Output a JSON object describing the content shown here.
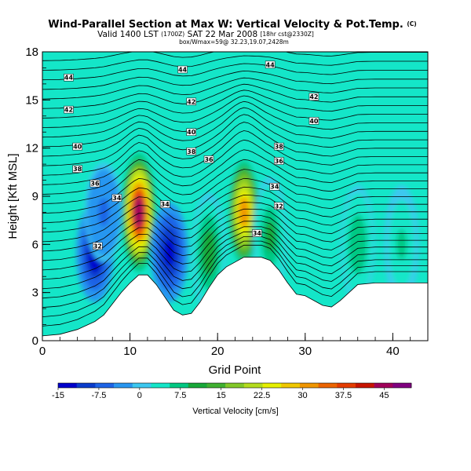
{
  "chart_data": {
    "type": "heatmap",
    "title": "Wind-Parallel Section at Max W: Vertical Velocity & Pot.Temp.",
    "title_mark": "(C)",
    "subtitle_main": "Valid 1400 LST",
    "subtitle_utc": "(1700Z)",
    "subtitle_date": "SAT 22 Mar 2008",
    "subtitle_run": "[18hr cst@2330Z]",
    "subtitle_box": "box/Wmax=59@ 32.23,19.07,2428m",
    "xlabel": "Grid Point",
    "ylabel": "Height [Kft MSL]",
    "xlim": [
      0,
      44
    ],
    "ylim": [
      0,
      18
    ],
    "x_ticks": [
      "0",
      "10",
      "20",
      "30",
      "40"
    ],
    "y_ticks": [
      "0",
      "3",
      "6",
      "9",
      "12",
      "15",
      "18"
    ],
    "colorbar": {
      "label": "Vertical Velocity [cm/s]",
      "range": [
        -15,
        50
      ],
      "tick_labels": [
        "-15",
        "-7.5",
        "0",
        "7.5",
        "15",
        "22.5",
        "30",
        "37.5",
        "45"
      ],
      "colors": [
        "#0000cc",
        "#0a3ccc",
        "#1e64e6",
        "#2896f0",
        "#3cc8f0",
        "#14e6c8",
        "#00c882",
        "#18a838",
        "#40b030",
        "#82c828",
        "#b4dc1e",
        "#e6f000",
        "#f0c800",
        "#f09600",
        "#ec6400",
        "#e43c00",
        "#c81400",
        "#a0005a",
        "#800080"
      ]
    },
    "terrain_top_kft": [
      [
        0,
        0.3
      ],
      [
        2,
        0.4
      ],
      [
        4,
        0.7
      ],
      [
        6,
        1.2
      ],
      [
        7,
        1.6
      ],
      [
        8,
        2.3
      ],
      [
        9,
        3.0
      ],
      [
        10,
        3.6
      ],
      [
        11,
        4.1
      ],
      [
        12,
        4.1
      ],
      [
        13,
        3.5
      ],
      [
        14,
        2.7
      ],
      [
        15,
        1.9
      ],
      [
        16,
        1.6
      ],
      [
        17,
        1.7
      ],
      [
        18,
        2.4
      ],
      [
        19,
        3.3
      ],
      [
        20,
        4.1
      ],
      [
        21,
        4.6
      ],
      [
        22,
        4.9
      ],
      [
        23,
        5.2
      ],
      [
        24,
        5.2
      ],
      [
        25,
        5.2
      ],
      [
        26,
        5.0
      ],
      [
        27,
        4.4
      ],
      [
        28,
        3.6
      ],
      [
        29,
        2.9
      ],
      [
        30,
        2.8
      ],
      [
        31,
        2.5
      ],
      [
        32,
        2.2
      ],
      [
        33,
        2.1
      ],
      [
        34,
        2.5
      ],
      [
        35,
        3.0
      ],
      [
        36,
        3.5
      ],
      [
        38,
        3.6
      ],
      [
        40,
        3.6
      ],
      [
        42,
        3.6
      ],
      [
        44,
        3.6
      ]
    ],
    "vertical_velocity_cells": [
      {
        "x": 11,
        "z": 8.0,
        "peak_cm_s": 45
      },
      {
        "x": 23,
        "z": 8.0,
        "peak_cm_s": 30
      },
      {
        "x": 19,
        "z": 5.5,
        "peak_cm_s": 12
      },
      {
        "x": 26,
        "z": 6.5,
        "peak_cm_s": 9
      },
      {
        "x": 36,
        "z": 6.0,
        "peak_cm_s": 8
      },
      {
        "x": 41,
        "z": 6.0,
        "peak_cm_s": 6
      },
      {
        "x": 6,
        "z": 5.5,
        "peak_cm_s": -14
      },
      {
        "x": 14.5,
        "z": 5.5,
        "peak_cm_s": -12
      },
      {
        "x": 7,
        "z": 8.0,
        "peak_cm_s": -5
      }
    ],
    "theta_contour_labels": [
      {
        "value": "44",
        "x": 3,
        "y": 16.4
      },
      {
        "value": "44",
        "x": 16,
        "y": 16.9
      },
      {
        "value": "44",
        "x": 26,
        "y": 17.2
      },
      {
        "value": "42",
        "x": 3,
        "y": 14.4
      },
      {
        "value": "42",
        "x": 17,
        "y": 14.9
      },
      {
        "value": "42",
        "x": 31,
        "y": 15.2
      },
      {
        "value": "40",
        "x": 4,
        "y": 12.1
      },
      {
        "value": "40",
        "x": 17,
        "y": 13.0
      },
      {
        "value": "40",
        "x": 31,
        "y": 13.7
      },
      {
        "value": "38",
        "x": 4,
        "y": 10.7
      },
      {
        "value": "38",
        "x": 17,
        "y": 11.8
      },
      {
        "value": "38",
        "x": 27,
        "y": 12.1
      },
      {
        "value": "36",
        "x": 6,
        "y": 9.8
      },
      {
        "value": "36",
        "x": 19,
        "y": 11.3
      },
      {
        "value": "36",
        "x": 27,
        "y": 11.2
      },
      {
        "value": "34",
        "x": 8.5,
        "y": 8.9
      },
      {
        "value": "34",
        "x": 14,
        "y": 8.5
      },
      {
        "value": "34",
        "x": 26.5,
        "y": 9.6
      },
      {
        "value": "32",
        "x": 27,
        "y": 8.4
      },
      {
        "value": "32",
        "x": 6.3,
        "y": 5.9
      },
      {
        "value": "34",
        "x": 24.5,
        "y": 6.7
      }
    ]
  }
}
